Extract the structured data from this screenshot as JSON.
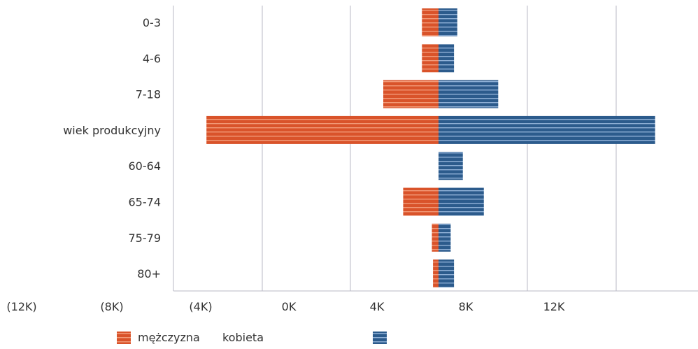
{
  "chart_data": {
    "type": "bar",
    "orientation": "horizontal",
    "stacking": "diverging",
    "title": "",
    "xlabel": "",
    "ylabel": "",
    "categories": [
      "0-3",
      "4-6",
      "7-18",
      "wiek produkcyjny",
      "60-64",
      "65-74",
      "75-79",
      "80+"
    ],
    "series": [
      {
        "name": "mężczyzna",
        "color": "#d9532a",
        "values": [
          -750,
          -750,
          -2500,
          -10500,
          0,
          -1600,
          -300,
          -250
        ]
      },
      {
        "name": "kobieta",
        "color": "#2c5b8c",
        "values": [
          850,
          700,
          2700,
          9800,
          1100,
          2050,
          550,
          700
        ]
      }
    ],
    "xlim": [
      -12000,
      12000
    ],
    "ticks": [
      {
        "value": -12000,
        "label": "(12K)"
      },
      {
        "value": -8000,
        "label": "(8K)"
      },
      {
        "value": -4000,
        "label": "(4K)"
      },
      {
        "value": 0,
        "label": "0K"
      },
      {
        "value": 4000,
        "label": "4K"
      },
      {
        "value": 8000,
        "label": "8K"
      },
      {
        "value": 12000,
        "label": "12K"
      }
    ],
    "grid": true,
    "legend_position": "bottom"
  }
}
